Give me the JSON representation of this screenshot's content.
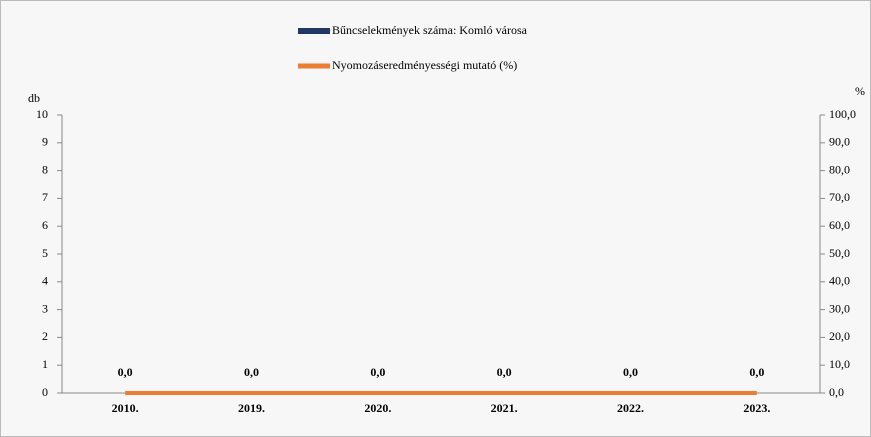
{
  "chart_data": {
    "type": "bar-line",
    "categories": [
      "2010.",
      "2019.",
      "2020.",
      "2021.",
      "2022.",
      "2023."
    ],
    "series": [
      {
        "name": "Bűncselekmények száma: Komló városa",
        "type": "bar",
        "color": "#1f3864",
        "values": [
          0,
          0,
          0,
          0,
          0,
          0
        ],
        "value_labels": [
          "0,0",
          "0,0",
          "0,0",
          "0,0",
          "0,0",
          "0,0"
        ]
      },
      {
        "name": "Nyomozáseredményességi mutató (%)",
        "type": "line",
        "color": "#ed7d31",
        "axis": "y2",
        "values": [
          0,
          0,
          0,
          0,
          0,
          0
        ]
      }
    ],
    "y_label": "db",
    "y2_label": "%",
    "ylim": [
      0,
      10
    ],
    "yticks": [
      0,
      1,
      2,
      3,
      4,
      5,
      6,
      7,
      8,
      9,
      10
    ],
    "y2lim": [
      0,
      100
    ],
    "y2ticks": [
      {
        "value": 0,
        "label": "0,0"
      },
      {
        "value": 10,
        "label": "10,0"
      },
      {
        "value": 20,
        "label": "20,0"
      },
      {
        "value": 30,
        "label": "30,0"
      },
      {
        "value": 40,
        "label": "40,0"
      },
      {
        "value": 50,
        "label": "50,0"
      },
      {
        "value": 60,
        "label": "60,0"
      },
      {
        "value": 70,
        "label": "70,0"
      },
      {
        "value": 80,
        "label": "80,0"
      },
      {
        "value": 90,
        "label": "90,0"
      },
      {
        "value": 100,
        "label": "100,0"
      }
    ],
    "legend": "top"
  }
}
